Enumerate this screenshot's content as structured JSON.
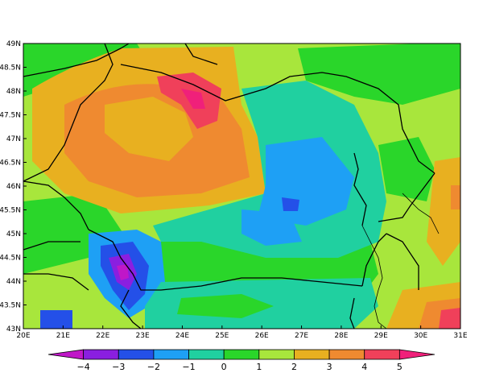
{
  "map": {
    "x_ticks": [
      "20E",
      "21E",
      "22E",
      "23E",
      "24E",
      "25E",
      "26E",
      "27E",
      "28E",
      "29E",
      "30E",
      "31E"
    ],
    "y_ticks": [
      "49N",
      "48.5N",
      "48N",
      "47.5N",
      "47N",
      "46.5N",
      "46N",
      "45.5N",
      "45N",
      "44.5N",
      "44N",
      "43.5N",
      "43N"
    ],
    "lon_range": [
      20,
      31
    ],
    "lat_range": [
      43,
      49
    ],
    "grid": false,
    "field_colors": {
      "magenta": "#c017c8",
      "purple": "#8a1fe0",
      "blue": "#2450e8",
      "light_blue": "#1ea0f5",
      "teal": "#20d0a0",
      "green": "#2ad62a",
      "lime": "#a8e63c",
      "yellow_orange": "#e8b020",
      "orange": "#ef8a30",
      "red": "#f0405a",
      "pink": "#f0207a"
    }
  },
  "colorbar": {
    "labels": [
      "−4",
      "−3",
      "−2",
      "−1",
      "0",
      "1",
      "2",
      "3",
      "4",
      "5"
    ],
    "colors": [
      "#c017c8",
      "#8a1fe0",
      "#2450e8",
      "#1ea0f5",
      "#20d0a0",
      "#2ad62a",
      "#a8e63c",
      "#e8b020",
      "#ef8a30",
      "#f0405a",
      "#f0207a"
    ]
  }
}
